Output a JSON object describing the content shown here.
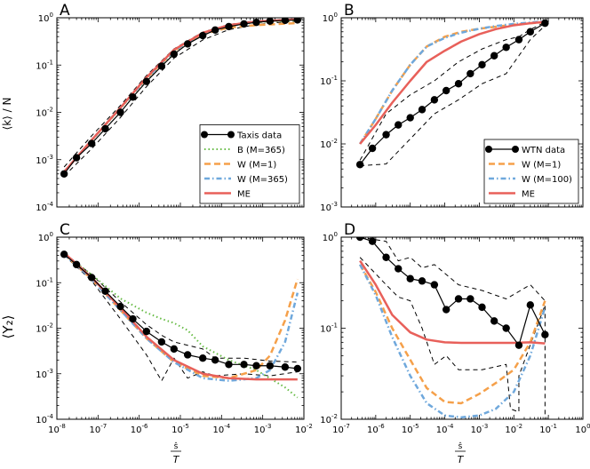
{
  "figure": {
    "xlabel_top": "ŝ",
    "xlabel_bottom": "T",
    "ylabel_A": "⟨k⟩ / N",
    "ylabel_C": "⟨Y₂⟩"
  },
  "chart_data": [
    {
      "panel": "A",
      "type": "line",
      "xscale": "log",
      "yscale": "log",
      "xlim": [
        1e-08,
        0.01
      ],
      "ylim": [
        0.0001,
        1
      ],
      "x_ticks": [],
      "y_ticks": [
        "10^-4",
        "10^-3",
        "10^-2",
        "10^-1",
        "10^0"
      ],
      "legend": {
        "position": "bottom-right",
        "entries": [
          "Taxis data",
          "B (M=365)",
          "W (M=1)",
          "W (M=365)",
          "ME"
        ]
      },
      "series": [
        {
          "name": "Taxis data",
          "style": "black-marker",
          "x": [
            1.5e-08,
            3e-08,
            7e-08,
            1.5e-07,
            3.5e-07,
            7e-07,
            1.5e-06,
            3.5e-06,
            7e-06,
            1.5e-05,
            3.5e-05,
            7e-05,
            0.00015,
            0.00035,
            0.0007,
            0.0015,
            0.0035,
            0.007
          ],
          "y": [
            0.0005,
            0.0011,
            0.0022,
            0.0045,
            0.01,
            0.021,
            0.045,
            0.095,
            0.17,
            0.28,
            0.42,
            0.55,
            0.65,
            0.74,
            0.8,
            0.85,
            0.88,
            0.9
          ]
        },
        {
          "name": "upper bound",
          "style": "black-dashed",
          "x": [
            1.5e-08,
            7e-08,
            3.5e-07,
            1.5e-06,
            7e-06,
            3.5e-05,
            0.00015,
            0.0007,
            0.0035,
            0.007
          ],
          "y": [
            0.0007,
            0.0032,
            0.014,
            0.06,
            0.22,
            0.5,
            0.72,
            0.86,
            0.93,
            0.95
          ]
        },
        {
          "name": "lower bound",
          "style": "black-dashed",
          "x": [
            1.5e-08,
            7e-08,
            3.5e-07,
            1.5e-06,
            7e-06,
            3.5e-05,
            0.00015,
            0.0007,
            0.0035,
            0.007
          ],
          "y": [
            0.00045,
            0.0017,
            0.0078,
            0.035,
            0.14,
            0.34,
            0.56,
            0.72,
            0.82,
            0.85
          ]
        },
        {
          "name": "B (M=365)",
          "style": "green-dotted",
          "x": [
            1.5e-08,
            7e-08,
            3.5e-07,
            1.5e-06,
            7e-06,
            3.5e-05,
            0.00015,
            0.0007,
            0.0035,
            0.007
          ],
          "y": [
            0.00055,
            0.0025,
            0.012,
            0.05,
            0.19,
            0.45,
            0.68,
            0.8,
            0.86,
            0.88
          ]
        },
        {
          "name": "W (M=1)",
          "style": "orange-dashed",
          "x": [
            1.5e-08,
            7e-08,
            3.5e-07,
            1.5e-06,
            7e-06,
            3.5e-05,
            0.00015,
            0.0007,
            0.0035,
            0.007
          ],
          "y": [
            0.00055,
            0.0026,
            0.0125,
            0.052,
            0.2,
            0.45,
            0.62,
            0.7,
            0.75,
            0.77
          ]
        },
        {
          "name": "W (M=365)",
          "style": "blue-dashdot",
          "x": [
            1.5e-08,
            7e-08,
            3.5e-07,
            1.5e-06,
            7e-06,
            3.5e-05,
            0.00015,
            0.0007,
            0.0035,
            0.007
          ],
          "y": [
            0.00055,
            0.0026,
            0.0125,
            0.052,
            0.2,
            0.47,
            0.68,
            0.82,
            0.9,
            0.92
          ]
        },
        {
          "name": "ME",
          "style": "red-solid",
          "x": [
            1.5e-08,
            7e-08,
            3.5e-07,
            1.5e-06,
            7e-06,
            3.5e-05,
            0.00015,
            0.0007,
            0.0035,
            0.007
          ],
          "y": [
            0.00055,
            0.0026,
            0.0125,
            0.055,
            0.21,
            0.48,
            0.7,
            0.83,
            0.9,
            0.92
          ]
        }
      ]
    },
    {
      "panel": "B",
      "type": "line",
      "xscale": "log",
      "yscale": "log",
      "xlim": [
        1e-07,
        1
      ],
      "ylim": [
        0.001,
        1
      ],
      "x_ticks": [],
      "y_ticks": [
        "10^-3",
        "10^-2",
        "10^-1",
        "10^0"
      ],
      "legend": {
        "position": "bottom-right",
        "entries": [
          "WTN data",
          "W (M=1)",
          "W (M=100)",
          "ME"
        ]
      },
      "series": [
        {
          "name": "WTN data",
          "style": "black-marker",
          "x": [
            3.5e-07,
            8e-07,
            2e-06,
            4.5e-06,
            1e-05,
            2.2e-05,
            5e-05,
            0.00011,
            0.00025,
            0.00055,
            0.0012,
            0.0027,
            0.006,
            0.014,
            0.03,
            0.08
          ],
          "y": [
            0.0047,
            0.0085,
            0.014,
            0.02,
            0.026,
            0.035,
            0.05,
            0.07,
            0.09,
            0.13,
            0.18,
            0.25,
            0.34,
            0.45,
            0.6,
            0.82
          ]
        },
        {
          "name": "upper bound",
          "style": "black-dashed",
          "x": [
            3.5e-07,
            2e-06,
            1e-05,
            5e-05,
            0.00025,
            0.0012,
            0.006,
            0.014,
            0.03,
            0.08
          ],
          "y": [
            0.0055,
            0.03,
            0.06,
            0.1,
            0.2,
            0.32,
            0.45,
            0.5,
            0.65,
            0.85
          ]
        },
        {
          "name": "lower bound",
          "style": "black-dashed",
          "x": [
            3.5e-07,
            2e-06,
            1e-05,
            5e-05,
            0.00025,
            0.0012,
            0.006,
            0.014,
            0.03,
            0.08
          ],
          "y": [
            0.0045,
            0.0048,
            0.012,
            0.03,
            0.05,
            0.09,
            0.13,
            0.25,
            0.45,
            0.75
          ]
        },
        {
          "name": "W (M=1)",
          "style": "orange-dashed",
          "x": [
            3.5e-07,
            1e-06,
            3e-06,
            1e-05,
            3e-05,
            0.0001,
            0.0003,
            0.001,
            0.003,
            0.01,
            0.03,
            0.08
          ],
          "y": [
            0.01,
            0.025,
            0.07,
            0.18,
            0.35,
            0.5,
            0.6,
            0.67,
            0.72,
            0.78,
            0.82,
            0.85
          ]
        },
        {
          "name": "W (M=100)",
          "style": "blue-dashdot",
          "x": [
            3.5e-07,
            1e-06,
            3e-06,
            1e-05,
            3e-05,
            0.0001,
            0.0003,
            0.001,
            0.003,
            0.01,
            0.03,
            0.08
          ],
          "y": [
            0.01,
            0.025,
            0.07,
            0.18,
            0.35,
            0.48,
            0.58,
            0.67,
            0.74,
            0.8,
            0.84,
            0.88
          ]
        },
        {
          "name": "ME",
          "style": "red-solid",
          "x": [
            3.5e-07,
            1e-06,
            3e-06,
            1e-05,
            3e-05,
            0.0001,
            0.0003,
            0.001,
            0.003,
            0.01,
            0.03,
            0.08
          ],
          "y": [
            0.01,
            0.02,
            0.045,
            0.1,
            0.2,
            0.3,
            0.42,
            0.55,
            0.66,
            0.76,
            0.82,
            0.86
          ]
        }
      ]
    },
    {
      "panel": "C",
      "type": "line",
      "xscale": "log",
      "yscale": "log",
      "xlim": [
        1e-08,
        0.01
      ],
      "ylim": [
        0.0001,
        1
      ],
      "x_ticks": [
        "10^-8",
        "10^-7",
        "10^-6",
        "10^-5",
        "10^-4",
        "10^-3",
        "10^-2"
      ],
      "y_ticks": [
        "10^-4",
        "10^-3",
        "10^-2",
        "10^-1",
        "10^0"
      ],
      "series": [
        {
          "name": "Taxis data",
          "style": "black-marker",
          "x": [
            1.5e-08,
            3e-08,
            7e-08,
            1.5e-07,
            3.5e-07,
            7e-07,
            1.5e-06,
            3.5e-06,
            7e-06,
            1.5e-05,
            3.5e-05,
            7e-05,
            0.00015,
            0.00035,
            0.0007,
            0.0015,
            0.0035,
            0.007
          ],
          "y": [
            0.42,
            0.25,
            0.13,
            0.065,
            0.03,
            0.016,
            0.0085,
            0.005,
            0.0035,
            0.0026,
            0.0022,
            0.002,
            0.0016,
            0.0016,
            0.0015,
            0.0015,
            0.0014,
            0.0013
          ]
        },
        {
          "name": "upper bound",
          "style": "black-dashed",
          "x": [
            1.5e-08,
            7e-08,
            3.5e-07,
            1.5e-06,
            3.5e-06,
            7e-06,
            3.5e-05,
            7e-05,
            0.00035,
            0.0015,
            0.007
          ],
          "y": [
            0.45,
            0.15,
            0.038,
            0.012,
            0.007,
            0.005,
            0.0035,
            0.0022,
            0.0022,
            0.0019,
            0.0018
          ]
        },
        {
          "name": "lower bound",
          "style": "black-dashed",
          "x": [
            1.5e-08,
            7e-08,
            3.5e-07,
            1.5e-06,
            3.5e-06,
            7e-06,
            1.5e-05,
            3.5e-05,
            7e-05,
            0.00035,
            0.0015,
            0.007
          ],
          "y": [
            0.4,
            0.11,
            0.016,
            0.0026,
            0.0007,
            0.0022,
            0.0008,
            0.0011,
            0.0009,
            0.001,
            0.0009,
            0.0011
          ]
        },
        {
          "name": "B (M=365)",
          "style": "green-dotted",
          "x": [
            1.5e-08,
            7e-08,
            3.5e-07,
            1.5e-06,
            3.5e-06,
            7e-06,
            1.5e-05,
            3.5e-05,
            0.00015,
            0.0007,
            0.0035,
            0.007
          ],
          "y": [
            0.42,
            0.15,
            0.045,
            0.022,
            0.016,
            0.013,
            0.009,
            0.004,
            0.002,
            0.0012,
            0.0005,
            0.0003
          ]
        },
        {
          "name": "W (M=1)",
          "style": "orange-dashed",
          "x": [
            1.5e-08,
            7e-08,
            3.5e-07,
            1.5e-06,
            7e-06,
            3.5e-05,
            0.00015,
            0.0007,
            0.0015,
            0.0035,
            0.007
          ],
          "y": [
            0.42,
            0.12,
            0.025,
            0.006,
            0.0018,
            0.0009,
            0.0008,
            0.0012,
            0.0025,
            0.015,
            0.12
          ]
        },
        {
          "name": "W (M=365)",
          "style": "blue-dashdot",
          "x": [
            1.5e-08,
            7e-08,
            3.5e-07,
            1.5e-06,
            7e-06,
            3.5e-05,
            0.00015,
            0.0007,
            0.0015,
            0.0035,
            0.007
          ],
          "y": [
            0.42,
            0.12,
            0.025,
            0.006,
            0.0018,
            0.0008,
            0.0007,
            0.0008,
            0.0012,
            0.005,
            0.06
          ]
        },
        {
          "name": "ME",
          "style": "red-solid",
          "x": [
            1.5e-08,
            7e-08,
            3.5e-07,
            1.5e-06,
            7e-06,
            3.5e-05,
            0.00015,
            0.0007,
            0.0035,
            0.007
          ],
          "y": [
            0.45,
            0.13,
            0.028,
            0.0065,
            0.002,
            0.001,
            0.0008,
            0.00075,
            0.00075,
            0.00075
          ]
        }
      ]
    },
    {
      "panel": "D",
      "type": "line",
      "xscale": "log",
      "yscale": "log",
      "xlim": [
        1e-07,
        1
      ],
      "ylim": [
        0.01,
        1
      ],
      "x_ticks": [
        "10^-7",
        "10^-6",
        "10^-5",
        "10^-4",
        "10^-3",
        "10^-2",
        "10^-1",
        "10^0"
      ],
      "y_ticks": [
        "10^-2",
        "10^-1",
        "10^0"
      ],
      "series": [
        {
          "name": "WTN data",
          "style": "black-marker",
          "x": [
            3.5e-07,
            8e-07,
            2e-06,
            4.5e-06,
            1e-05,
            2.2e-05,
            5e-05,
            0.00011,
            0.00025,
            0.00055,
            0.0012,
            0.0027,
            0.006,
            0.014,
            0.03,
            0.08
          ],
          "y": [
            1.0,
            0.9,
            0.6,
            0.45,
            0.35,
            0.33,
            0.3,
            0.16,
            0.21,
            0.21,
            0.17,
            0.12,
            0.1,
            0.065,
            0.18,
            0.085
          ]
        },
        {
          "name": "upper bound",
          "style": "black-dashed",
          "x": [
            3.5e-07,
            2e-06,
            4.5e-06,
            1e-05,
            2.2e-05,
            5e-05,
            0.00025,
            0.0012,
            0.006,
            0.03,
            0.08
          ],
          "y": [
            1.0,
            0.9,
            0.55,
            0.6,
            0.46,
            0.5,
            0.3,
            0.26,
            0.21,
            0.3,
            0.2
          ]
        },
        {
          "name": "lower bound",
          "style": "black-dashed",
          "x": [
            3.5e-07,
            2e-06,
            4.5e-06,
            1e-05,
            2.2e-05,
            5e-05,
            0.00011,
            0.00025,
            0.0012,
            0.006,
            0.008,
            0.014,
            0.014,
            0.08,
            0.08
          ],
          "y": [
            0.6,
            0.3,
            0.22,
            0.2,
            0.1,
            0.04,
            0.05,
            0.035,
            0.035,
            0.04,
            0.013,
            0.012,
            0.03,
            0.18,
            0.01
          ]
        },
        {
          "name": "W (M=1)",
          "style": "orange-dashed",
          "x": [
            3.5e-07,
            1e-06,
            3e-06,
            1e-05,
            3e-05,
            0.0001,
            0.0003,
            0.001,
            0.003,
            0.01,
            0.03,
            0.08
          ],
          "y": [
            0.5,
            0.25,
            0.1,
            0.045,
            0.022,
            0.0155,
            0.015,
            0.019,
            0.025,
            0.035,
            0.07,
            0.2
          ]
        },
        {
          "name": "W (M=100)",
          "style": "blue-dashdot",
          "x": [
            3.5e-07,
            1e-06,
            3e-06,
            1e-05,
            3e-05,
            0.0001,
            0.0003,
            0.001,
            0.003,
            0.01,
            0.03,
            0.08
          ],
          "y": [
            0.5,
            0.23,
            0.08,
            0.03,
            0.015,
            0.011,
            0.0105,
            0.011,
            0.013,
            0.02,
            0.05,
            0.17
          ]
        },
        {
          "name": "ME",
          "style": "red-solid",
          "x": [
            3.5e-07,
            1e-06,
            3e-06,
            1e-05,
            3e-05,
            0.0001,
            0.0003,
            0.001,
            0.003,
            0.01,
            0.03,
            0.08
          ],
          "y": [
            0.55,
            0.3,
            0.14,
            0.09,
            0.075,
            0.07,
            0.069,
            0.069,
            0.069,
            0.069,
            0.07,
            0.068
          ]
        }
      ]
    }
  ]
}
